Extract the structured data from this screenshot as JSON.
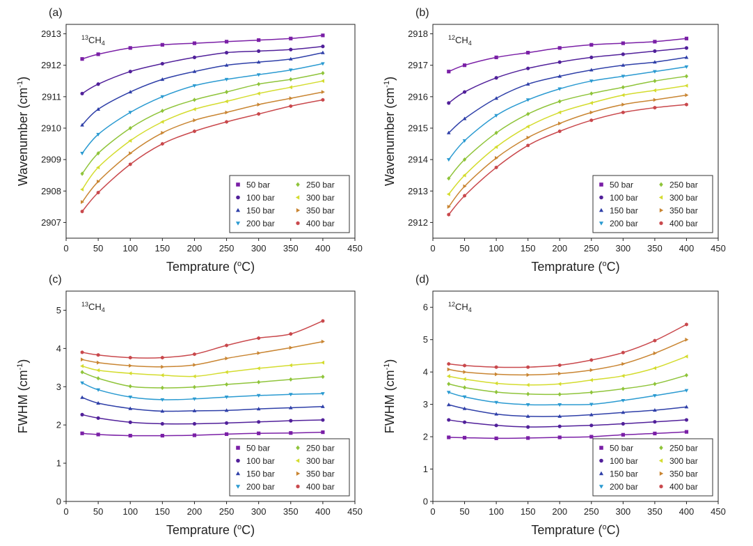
{
  "figure": {
    "series_names": [
      "50 bar",
      "100 bar",
      "150 bar",
      "200 bar",
      "250 bar",
      "300 bar",
      "350 bar",
      "400 bar"
    ],
    "series_colors": [
      "#7a1fa6",
      "#51209a",
      "#2e3fa8",
      "#2a9ad1",
      "#8fc43a",
      "#d4dc2e",
      "#c98532",
      "#c9484c"
    ],
    "series_markers": [
      "square",
      "circle",
      "triangle-up",
      "triangle-down",
      "diamond",
      "triangle-left",
      "triangle-right",
      "hexagon"
    ]
  },
  "chart_data": [
    {
      "type": "line",
      "panel_label": "(a)",
      "species_iso": "13",
      "species_base": "CH",
      "species_sub": "4",
      "xlabel_main": "Temprature (",
      "xlabel_sup": "o",
      "xlabel_end": "C)",
      "ylabel_main": "Wavenumber (cm",
      "ylabel_sup": "-1",
      "ylabel_end": ")",
      "xlim": [
        0,
        450
      ],
      "ylim": [
        2906.5,
        2913.3
      ],
      "xticks": [
        0,
        50,
        100,
        150,
        200,
        250,
        300,
        350,
        400,
        450
      ],
      "yticks": [
        2907,
        2908,
        2909,
        2910,
        2911,
        2912,
        2913
      ],
      "legend_position": "lower-right",
      "x": [
        25,
        50,
        100,
        150,
        200,
        250,
        300,
        350,
        400
      ],
      "series": [
        {
          "name": "50 bar",
          "values": [
            2912.2,
            2912.35,
            2912.55,
            2912.65,
            2912.7,
            2912.75,
            2912.8,
            2912.85,
            2912.95
          ]
        },
        {
          "name": "100 bar",
          "values": [
            2911.1,
            2911.4,
            2911.8,
            2912.05,
            2912.25,
            2912.4,
            2912.45,
            2912.5,
            2912.6
          ]
        },
        {
          "name": "150 bar",
          "values": [
            2910.1,
            2910.6,
            2911.15,
            2911.55,
            2911.8,
            2912.0,
            2912.1,
            2912.2,
            2912.4
          ]
        },
        {
          "name": "200 bar",
          "values": [
            2909.2,
            2909.8,
            2910.5,
            2911.0,
            2911.35,
            2911.55,
            2911.7,
            2911.85,
            2912.05
          ]
        },
        {
          "name": "250 bar",
          "values": [
            2908.55,
            2909.2,
            2910.0,
            2910.55,
            2910.9,
            2911.15,
            2911.4,
            2911.55,
            2911.75
          ]
        },
        {
          "name": "300 bar",
          "values": [
            2908.05,
            2908.75,
            2909.6,
            2910.2,
            2910.6,
            2910.85,
            2911.1,
            2911.3,
            2911.5
          ]
        },
        {
          "name": "350 bar",
          "values": [
            2907.65,
            2908.3,
            2909.2,
            2909.85,
            2910.25,
            2910.5,
            2910.75,
            2910.95,
            2911.15
          ]
        },
        {
          "name": "400 bar",
          "values": [
            2907.35,
            2907.95,
            2908.85,
            2909.5,
            2909.9,
            2910.2,
            2910.45,
            2910.7,
            2910.9
          ]
        }
      ]
    },
    {
      "type": "line",
      "panel_label": "(b)",
      "species_iso": "12",
      "species_base": "CH",
      "species_sub": "4",
      "xlabel_main": "Temprature (",
      "xlabel_sup": "o",
      "xlabel_end": "C)",
      "ylabel_main": "Wavenumber (cm",
      "ylabel_sup": "-1",
      "ylabel_end": ")",
      "xlim": [
        0,
        450
      ],
      "ylim": [
        2911.5,
        2918.3
      ],
      "xticks": [
        0,
        50,
        100,
        150,
        200,
        250,
        300,
        350,
        400,
        450
      ],
      "yticks": [
        2912,
        2913,
        2914,
        2915,
        2916,
        2917,
        2918
      ],
      "legend_position": "lower-right",
      "x": [
        25,
        50,
        100,
        150,
        200,
        250,
        300,
        350,
        400
      ],
      "series": [
        {
          "name": "50 bar",
          "values": [
            2916.8,
            2917.0,
            2917.25,
            2917.4,
            2917.55,
            2917.65,
            2917.7,
            2917.75,
            2917.85
          ]
        },
        {
          "name": "100 bar",
          "values": [
            2915.8,
            2916.15,
            2916.6,
            2916.9,
            2917.1,
            2917.25,
            2917.35,
            2917.45,
            2917.55
          ]
        },
        {
          "name": "150 bar",
          "values": [
            2914.85,
            2915.3,
            2915.95,
            2916.4,
            2916.65,
            2916.85,
            2917.0,
            2917.1,
            2917.25
          ]
        },
        {
          "name": "200 bar",
          "values": [
            2914.0,
            2914.6,
            2915.4,
            2915.9,
            2916.25,
            2916.5,
            2916.65,
            2916.8,
            2916.95
          ]
        },
        {
          "name": "250 bar",
          "values": [
            2913.4,
            2914.0,
            2914.85,
            2915.45,
            2915.85,
            2916.1,
            2916.3,
            2916.5,
            2916.65
          ]
        },
        {
          "name": "300 bar",
          "values": [
            2912.9,
            2913.5,
            2914.4,
            2915.05,
            2915.5,
            2915.8,
            2916.05,
            2916.2,
            2916.35
          ]
        },
        {
          "name": "350 bar",
          "values": [
            2912.5,
            2913.15,
            2914.05,
            2914.7,
            2915.15,
            2915.5,
            2915.75,
            2915.9,
            2916.05
          ]
        },
        {
          "name": "400 bar",
          "values": [
            2912.25,
            2912.85,
            2913.75,
            2914.45,
            2914.9,
            2915.25,
            2915.5,
            2915.65,
            2915.75
          ]
        }
      ]
    },
    {
      "type": "line",
      "panel_label": "(c)",
      "species_iso": "13",
      "species_base": "CH",
      "species_sub": "4",
      "xlabel_main": "Temprature (",
      "xlabel_sup": "o",
      "xlabel_end": "C)",
      "ylabel_main": "FWHM (cm",
      "ylabel_sup": "-1",
      "ylabel_end": ")",
      "xlim": [
        0,
        450
      ],
      "ylim": [
        0,
        5.5
      ],
      "xticks": [
        0,
        50,
        100,
        150,
        200,
        250,
        300,
        350,
        400,
        450
      ],
      "yticks": [
        0,
        1,
        2,
        3,
        4,
        5
      ],
      "legend_position": "lower-right",
      "x": [
        25,
        50,
        100,
        150,
        200,
        250,
        300,
        350,
        400
      ],
      "series": [
        {
          "name": "50 bar",
          "values": [
            1.78,
            1.75,
            1.72,
            1.72,
            1.73,
            1.76,
            1.78,
            1.79,
            1.81
          ]
        },
        {
          "name": "100 bar",
          "values": [
            2.27,
            2.18,
            2.07,
            2.03,
            2.03,
            2.05,
            2.08,
            2.11,
            2.13
          ]
        },
        {
          "name": "150 bar",
          "values": [
            2.72,
            2.57,
            2.43,
            2.36,
            2.37,
            2.38,
            2.42,
            2.45,
            2.48
          ]
        },
        {
          "name": "200 bar",
          "values": [
            3.1,
            2.92,
            2.73,
            2.66,
            2.68,
            2.73,
            2.77,
            2.8,
            2.82
          ]
        },
        {
          "name": "250 bar",
          "values": [
            3.38,
            3.22,
            3.01,
            2.97,
            2.99,
            3.06,
            3.12,
            3.19,
            3.26
          ]
        },
        {
          "name": "300 bar",
          "values": [
            3.54,
            3.43,
            3.35,
            3.3,
            3.27,
            3.38,
            3.48,
            3.56,
            3.63
          ]
        },
        {
          "name": "350 bar",
          "values": [
            3.71,
            3.63,
            3.55,
            3.52,
            3.57,
            3.74,
            3.88,
            4.02,
            4.18
          ]
        },
        {
          "name": "400 bar",
          "values": [
            3.9,
            3.83,
            3.76,
            3.76,
            3.85,
            4.08,
            4.27,
            4.38,
            4.72
          ]
        }
      ]
    },
    {
      "type": "line",
      "panel_label": "(d)",
      "species_iso": "12",
      "species_base": "CH",
      "species_sub": "4",
      "xlabel_main": "Temprature (",
      "xlabel_sup": "o",
      "xlabel_end": "C)",
      "ylabel_main": "FWHM (cm",
      "ylabel_sup": "-1",
      "ylabel_end": ")",
      "xlim": [
        0,
        450
      ],
      "ylim": [
        0,
        6.5
      ],
      "xticks": [
        0,
        50,
        100,
        150,
        200,
        250,
        300,
        350,
        400,
        450
      ],
      "yticks": [
        0,
        1,
        2,
        3,
        4,
        5,
        6
      ],
      "legend_position": "lower-right",
      "x": [
        25,
        50,
        100,
        150,
        200,
        250,
        300,
        350,
        400
      ],
      "series": [
        {
          "name": "50 bar",
          "values": [
            1.98,
            1.97,
            1.95,
            1.96,
            1.98,
            2.0,
            2.06,
            2.1,
            2.15
          ]
        },
        {
          "name": "100 bar",
          "values": [
            2.52,
            2.45,
            2.35,
            2.3,
            2.32,
            2.35,
            2.4,
            2.46,
            2.52
          ]
        },
        {
          "name": "150 bar",
          "values": [
            2.99,
            2.87,
            2.7,
            2.63,
            2.63,
            2.68,
            2.75,
            2.82,
            2.92
          ]
        },
        {
          "name": "200 bar",
          "values": [
            3.37,
            3.23,
            3.06,
            2.99,
            2.99,
            3.0,
            3.12,
            3.27,
            3.43
          ]
        },
        {
          "name": "250 bar",
          "values": [
            3.63,
            3.52,
            3.38,
            3.32,
            3.31,
            3.37,
            3.48,
            3.63,
            3.9
          ]
        },
        {
          "name": "300 bar",
          "values": [
            3.87,
            3.78,
            3.65,
            3.6,
            3.63,
            3.75,
            3.88,
            4.12,
            4.48
          ]
        },
        {
          "name": "350 bar",
          "values": [
            4.08,
            4.0,
            3.93,
            3.91,
            3.95,
            4.06,
            4.25,
            4.58,
            5.0
          ]
        },
        {
          "name": "400 bar",
          "values": [
            4.25,
            4.2,
            4.15,
            4.15,
            4.21,
            4.37,
            4.6,
            4.97,
            5.47
          ]
        }
      ]
    }
  ]
}
